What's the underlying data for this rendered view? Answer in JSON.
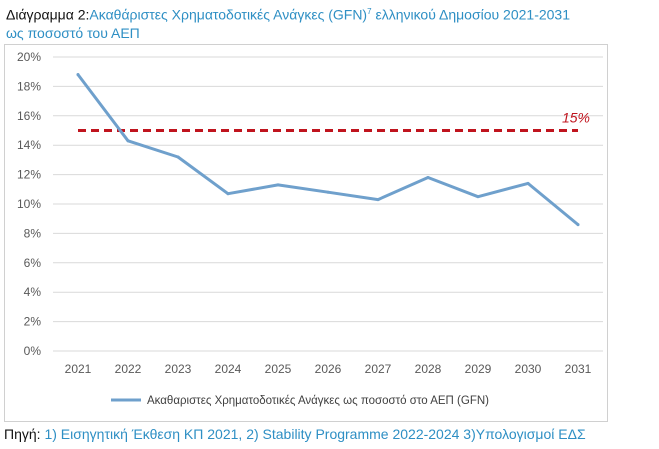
{
  "header": {
    "prefix": "Διάγραμμα 2:",
    "title": "Ακαθάριστες Χρηματοδοτικές Ανάγκες (GFN)",
    "footnote_marker": "7",
    "title_rest": " ελληνικού Δημοσίου 2021-2031",
    "title_line2": "ως ποσοστό του ΑΕΠ"
  },
  "source": {
    "label": "Πηγή:",
    "text": " 1) Εισηγητική Έκθεση ΚΠ 2021, 2) Stability Programme 2022-2024 3)Υπολογισμοί ΕΔΣ"
  },
  "chart_data": {
    "type": "line",
    "categories": [
      "2021",
      "2022",
      "2023",
      "2024",
      "2025",
      "2026",
      "2027",
      "2028",
      "2029",
      "2030",
      "2031"
    ],
    "series": [
      {
        "name": "Ακαθαριστες Χρηματοδοτικές Ανάγκες ως ποσοστό στο ΑΕΠ (GFN)",
        "values": [
          18.8,
          14.3,
          13.2,
          10.7,
          11.3,
          10.8,
          10.3,
          11.8,
          10.5,
          11.4,
          8.6
        ],
        "color": "#6fa0cc"
      }
    ],
    "reference_line": {
      "value": 15,
      "label": "15%",
      "color": "#c0141e"
    },
    "y_ticks": [
      "0%",
      "2%",
      "4%",
      "6%",
      "8%",
      "10%",
      "12%",
      "14%",
      "16%",
      "18%",
      "20%"
    ],
    "ylim": [
      0,
      20
    ],
    "legend_position": "bottom",
    "grid": true
  }
}
